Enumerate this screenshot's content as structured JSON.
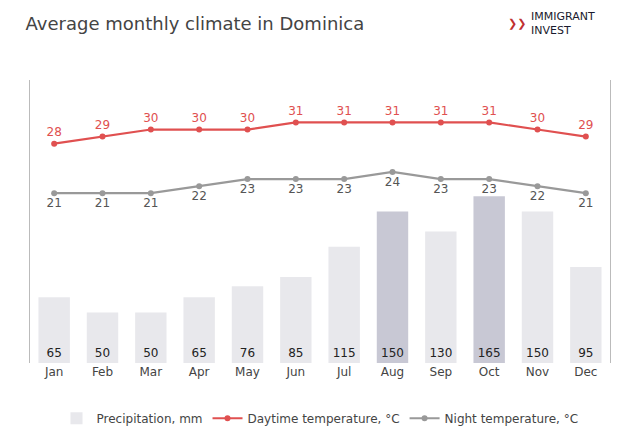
{
  "chart_data": {
    "type": "bar",
    "title": "Average monthly climate in Dominica",
    "categories": [
      "Jan",
      "Feb",
      "Mar",
      "Apr",
      "May",
      "Jun",
      "Jul",
      "Aug",
      "Sep",
      "Oct",
      "Nov",
      "Dec"
    ],
    "series": [
      {
        "name": "Precipitation, mm",
        "type": "bar",
        "colors": [
          "#e8e8ec",
          "#e8e8ec",
          "#e8e8ec",
          "#e8e8ec",
          "#e8e8ec",
          "#e8e8ec",
          "#e8e8ec",
          "#c8c8d4",
          "#e8e8ec",
          "#c8c8d4",
          "#e8e8ec",
          "#e8e8ec"
        ],
        "values": [
          65,
          50,
          50,
          65,
          76,
          85,
          115,
          150,
          130,
          165,
          150,
          95
        ]
      },
      {
        "name": "Daytime temperature, °C",
        "type": "line",
        "axis": "y2",
        "color": "#e05050",
        "marker": "circle",
        "values": [
          28,
          29,
          30,
          30,
          30,
          31,
          31,
          31,
          31,
          31,
          30,
          29
        ]
      },
      {
        "name": "Night temperature, °C",
        "type": "line",
        "axis": "y2",
        "color": "#999999",
        "marker": "circle",
        "values": [
          21,
          21,
          21,
          22,
          23,
          23,
          23,
          24,
          23,
          23,
          22,
          21
        ]
      }
    ],
    "ylim": [
      0,
      280
    ],
    "yticks": [],
    "y2lim": [
      -3,
      37
    ],
    "y2ticks": [],
    "tick_labels": "x",
    "grid": false,
    "legend": "bottom",
    "data_labels": true,
    "annotations": [
      {
        "text": "❯❯",
        "color": "#c03030"
      },
      {
        "text": "IMMIGRANT\nINVEST",
        "color": "#1a1a2e"
      }
    ]
  }
}
